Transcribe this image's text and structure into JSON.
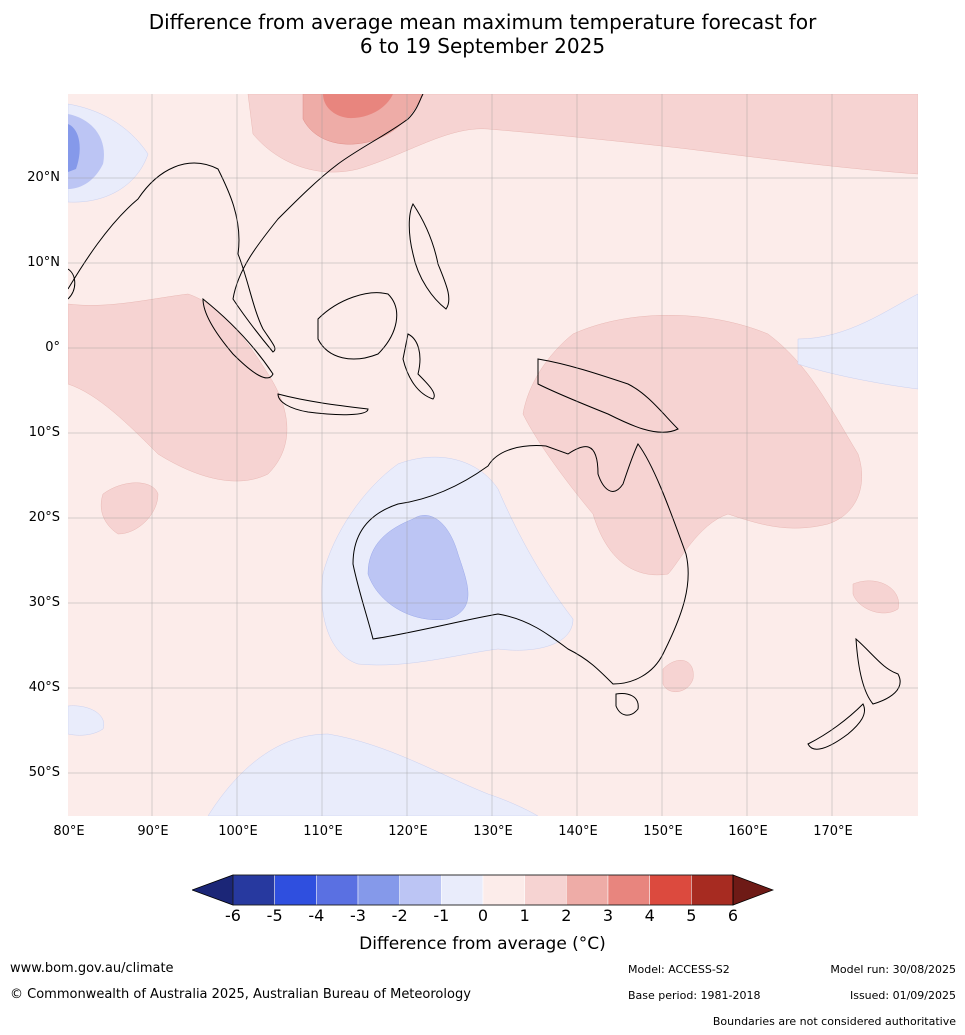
{
  "title_line1": "Difference from average mean maximum temperature forecast for",
  "title_line2": "6 to 19 September 2025",
  "lat_labels": [
    "20°N",
    "10°N",
    "0°",
    "10°S",
    "20°S",
    "30°S",
    "40°S",
    "50°S"
  ],
  "lon_labels": [
    "80°E",
    "90°E",
    "100°E",
    "110°E",
    "120°E",
    "130°E",
    "140°E",
    "150°E",
    "160°E",
    "170°E"
  ],
  "colorbar": {
    "ticks": [
      "-6",
      "-5",
      "-4",
      "-3",
      "-2",
      "-1",
      "0",
      "1",
      "2",
      "3",
      "4",
      "5",
      "6"
    ],
    "colors": [
      "#27399f",
      "#2f4fdf",
      "#5a70e2",
      "#8599ea",
      "#bcc5f4",
      "#e9ecfb",
      "#fcecea",
      "#f6d3d2",
      "#eeaca7",
      "#e8857e",
      "#dc4a3e",
      "#a72b21"
    ],
    "low_extend_color": "#1b2677",
    "high_extend_color": "#6e1a16",
    "title": "Difference from average (°C)"
  },
  "footer": {
    "url": "www.bom.gov.au/climate",
    "copyright": "© Commonwealth of Australia 2025, Australian Bureau of Meteorology",
    "model": "Model: ACCESS-S2",
    "base_period": "Base period: 1981-2018",
    "model_run": "Model run: 30/08/2025",
    "issued": "Issued: 01/09/2025",
    "disclaimer": "Boundaries are not considered authoritative"
  }
}
